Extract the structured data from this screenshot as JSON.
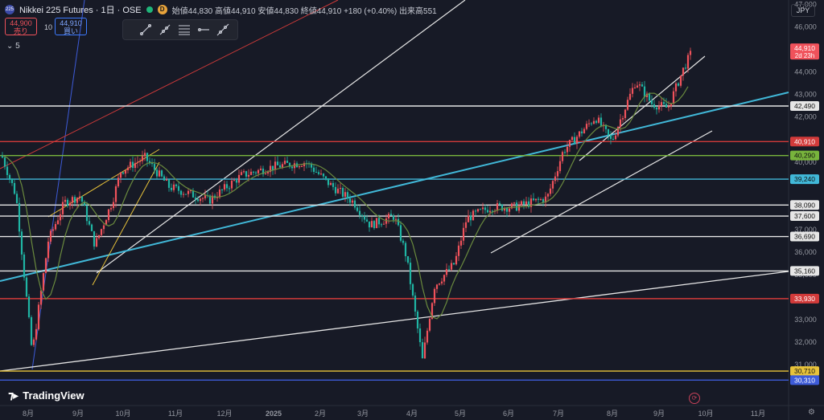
{
  "header": {
    "logo_text": "225",
    "title": "Nikkei 225 Futures · 1日 · OSE",
    "badge": "D",
    "ohlc_text": "始値44,830 高値44,910 安値44,830 終値44,910 +180 (+0.40%) 出来高551"
  },
  "trade": {
    "sell_price": "44,900",
    "sell_label": "売り",
    "spread": "10",
    "buy_price": "44,910",
    "buy_label": "買い"
  },
  "indicator_row": "⌄ 5",
  "currency": "JPY",
  "brand": "TradingView",
  "colors": {
    "bg": "#171a26",
    "up": "#f0525b",
    "down": "#1fb5a4",
    "ma": "#6a8a3e"
  },
  "chart_data": {
    "type": "candlestick",
    "ylim": [
      30000,
      47200
    ],
    "y_ticks": [
      31000,
      32000,
      33000,
      34000,
      35000,
      36000,
      37000,
      38000,
      40000,
      42000,
      43000,
      44000,
      46000,
      47000
    ],
    "x_ticks": [
      "8月",
      "9月",
      "10月",
      "11月",
      "12月",
      "2025",
      "2月",
      "3月",
      "4月",
      "5月",
      "6月",
      "7月",
      "8月",
      "9月",
      "10月",
      "11月"
    ],
    "last_price": "44,910",
    "countdown": "2d 23h",
    "horizontal_levels": [
      {
        "value": 42490,
        "label": "42,490",
        "color": "#e6e6e6",
        "bg": "#e6e6e6",
        "fg": "#111"
      },
      {
        "value": 40910,
        "label": "40,910",
        "color": "#d23a3a",
        "bg": "#d23a3a",
        "fg": "#fff"
      },
      {
        "value": 40290,
        "label": "40,290",
        "color": "#78b43c",
        "bg": "#78b43c",
        "fg": "#111"
      },
      {
        "value": 39240,
        "label": "39,240",
        "color": "#41b8d8",
        "bg": "#41b8d8",
        "fg": "#111"
      },
      {
        "value": 38090,
        "label": "38,090",
        "color": "#e6e6e6",
        "bg": "#e6e6e6",
        "fg": "#111"
      },
      {
        "value": 37600,
        "label": "37,600",
        "color": "#e6e6e6",
        "bg": "#e6e6e6",
        "fg": "#111"
      },
      {
        "value": 36690,
        "label": "36,690",
        "color": "#e6e6e6",
        "bg": "#e6e6e6",
        "fg": "#111"
      },
      {
        "value": 35160,
        "label": "35,160",
        "color": "#e6e6e6",
        "bg": "#e6e6e6",
        "fg": "#111"
      },
      {
        "value": 33930,
        "label": "33,930",
        "color": "#d23a3a",
        "bg": "#d23a3a",
        "fg": "#fff"
      },
      {
        "value": 30710,
        "label": "30,710",
        "color": "#e8c33a",
        "bg": "#e8c33a",
        "fg": "#111"
      },
      {
        "value": 30310,
        "label": "30,310",
        "color": "#3d5bd8",
        "bg": "#3d5bd8",
        "fg": "#fff"
      }
    ]
  }
}
